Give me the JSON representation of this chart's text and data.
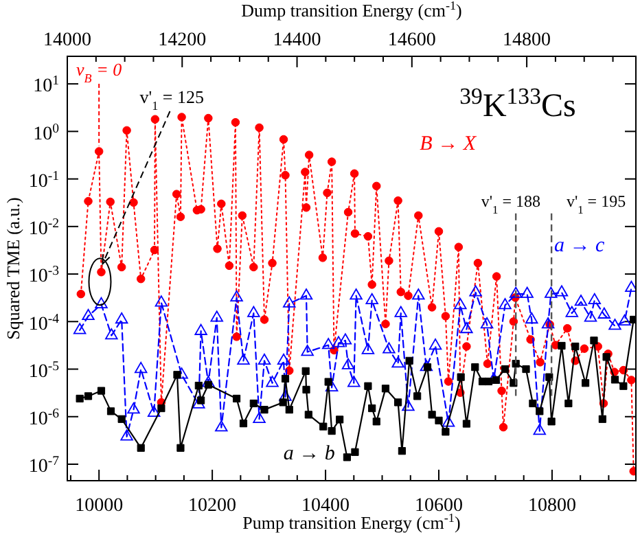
{
  "chart_data": {
    "type": "line",
    "xlabel": "Pump transition Energy (cm$^{-1}$)",
    "x2label": "Dump transition Energy (cm$^{-1}$)",
    "ylabel": "Squared TME (a.u.)",
    "log": "y",
    "xlim": [
      9944,
      10948
    ],
    "xticks": [
      {
        "value": 9950,
        "label": null
      },
      10000,
      {
        "value": 10050,
        "label": null
      },
      {
        "value": 10100,
        "label": null
      },
      {
        "value": 10150,
        "label": null
      },
      10200,
      {
        "value": 10250,
        "label": null
      },
      {
        "value": 10300,
        "label": null
      },
      {
        "value": 10350,
        "label": null
      },
      10400,
      {
        "value": 10450,
        "label": null
      },
      {
        "value": 10500,
        "label": null
      },
      {
        "value": 10550,
        "label": null
      },
      10600,
      {
        "value": 10650,
        "label": null
      },
      {
        "value": 10700,
        "label": null
      },
      {
        "value": 10750,
        "label": null
      },
      10800,
      {
        "value": 10850,
        "label": null
      },
      {
        "value": 10900,
        "label": null
      }
    ],
    "x2lim": [
      14000,
      14990
    ],
    "x2ticks": [
      14000,
      {
        "value": 14050,
        "label": null
      },
      {
        "value": 14100,
        "label": null
      },
      {
        "value": 14150,
        "label": null
      },
      14200,
      {
        "value": 14250,
        "label": null
      },
      {
        "value": 14300,
        "label": null
      },
      {
        "value": 14350,
        "label": null
      },
      14400,
      {
        "value": 14450,
        "label": null
      },
      {
        "value": 14500,
        "label": null
      },
      {
        "value": 14550,
        "label": null
      },
      14600,
      {
        "value": 14650,
        "label": null
      },
      {
        "value": 14700,
        "label": null
      },
      {
        "value": 14750,
        "label": null
      },
      14800,
      {
        "value": 14850,
        "label": null
      },
      {
        "value": 14900,
        "label": null
      },
      {
        "value": 14950,
        "label": null
      }
    ],
    "ylim": [
      4.5e-08,
      38
    ],
    "yticks": [
      {
        "value": 1e-07,
        "label": "10$^{-7}$"
      },
      {
        "value": 1e-06,
        "label": "10$^{-6}$"
      },
      {
        "value": 1e-05,
        "label": "10$^{-5}$"
      },
      {
        "value": 0.0001,
        "label": "10$^{-4}$"
      },
      {
        "value": 0.001,
        "label": "10$^{-3}$"
      },
      {
        "value": 0.01,
        "label": "10$^{-2}$"
      },
      {
        "value": 0.1,
        "label": "10$^{-1}$"
      },
      {
        "value": 1,
        "label": "10$^{0}$"
      },
      {
        "value": 10,
        "label": "10$^{1}$"
      }
    ],
    "grid": false,
    "series": [
      {
        "name": "B → X",
        "color": "#ff0000",
        "marker": "circle",
        "line_style": "dotted",
        "x": [
          9968,
          9981,
          10000,
          10004,
          10020,
          10040,
          10049,
          10061,
          10074,
          10098,
          10099,
          10110,
          10137,
          10144,
          10146,
          10173,
          10180,
          10193,
          10209,
          10216,
          10230,
          10241,
          10243,
          10253,
          10273,
          10283,
          10292,
          10306,
          10326,
          10329,
          10336,
          10364,
          10366,
          10371,
          10395,
          10403,
          10411,
          10415,
          10440,
          10451,
          10452,
          10475,
          10482,
          10490,
          10506,
          10512,
          10528,
          10533,
          10546,
          10564,
          10588,
          10600,
          10612,
          10617,
          10635,
          10638,
          10649,
          10669,
          10686,
          10702,
          10711,
          10714,
          10732,
          10735,
          10762,
          10779,
          10796,
          10806,
          10827,
          10841,
          10857,
          10881,
          10891,
          10899,
          10910,
          10926,
          10940,
          10944
        ],
        "values": [
          0.00038,
          0.034,
          0.38,
          0.0011,
          0.033,
          0.0014,
          1.05,
          0.032,
          0.00079,
          0.0032,
          1.8,
          2e-06,
          0.048,
          0.016,
          2.0,
          0.022,
          0.023,
          1.9,
          0.0034,
          0.03,
          0.0015,
          1.55,
          4.8e-05,
          0.017,
          0.0014,
          1.2,
          0.00011,
          0.0017,
          0.68,
          0.12,
          9.3e-06,
          0.14,
          0.025,
          0.32,
          0.0022,
          0.051,
          0.23,
          2.5e-05,
          0.02,
          0.13,
          0.0071,
          0.0062,
          0.0006,
          0.071,
          8.9e-05,
          0.0019,
          0.035,
          0.00042,
          0.00035,
          0.017,
          0.0002,
          0.0079,
          0.00013,
          5.5e-06,
          0.0037,
          3.2e-06,
          3e-05,
          0.0017,
          1.3e-05,
          0.00089,
          3.5e-06,
          6e-07,
          0.0001,
          0.00032,
          4.2e-05,
          1.4e-05,
          8.7e-05,
          3.2e-05,
          7.2e-05,
          1.5e-05,
          2.7e-05,
          3e-05,
          1.9e-06,
          2.1e-05,
          8.7e-06,
          9.5e-06,
          5.9e-06,
          7.1e-08
        ]
      },
      {
        "name": "a → c",
        "color": "#0000ff",
        "marker": "triangle",
        "line_style": "dashed",
        "x": [
          9966,
          9981,
          10004,
          10022,
          10040,
          10049,
          10061,
          10074,
          10097,
          10110,
          10146,
          10176,
          10180,
          10193,
          10208,
          10216,
          10243,
          10255,
          10273,
          10283,
          10292,
          10306,
          10326,
          10329,
          10336,
          10366,
          10368,
          10405,
          10411,
          10423,
          10435,
          10440,
          10450,
          10454,
          10475,
          10482,
          10512,
          10528,
          10533,
          10546,
          10564,
          10578,
          10594,
          10617,
          10638,
          10649,
          10665,
          10685,
          10697,
          10717,
          10736,
          10756,
          10764,
          10778,
          10793,
          10798,
          10817,
          10835,
          10851,
          10868,
          10875,
          10892,
          10911,
          10928,
          10940
        ],
        "values": [
          6.6e-05,
          0.00013,
          0.00023,
          5.1e-05,
          0.00011,
          3.8e-07,
          1.4e-06,
          1e-05,
          1.2e-06,
          0.00025,
          7.6e-06,
          1.8e-06,
          6.3e-05,
          5.1e-06,
          0.00012,
          5.9e-07,
          0.00032,
          1.5e-05,
          0.00015,
          8.9e-07,
          1.5e-05,
          5.1e-06,
          1.5e-05,
          2.6e-06,
          0.00024,
          0.00035,
          2.3e-05,
          3.2e-05,
          4.1e-06,
          3.5e-05,
          4e-05,
          1.2e-05,
          5.1e-06,
          0.00035,
          2.5e-05,
          0.00028,
          2.6e-05,
          1.3e-05,
          0.00015,
          1.6e-06,
          0.00035,
          1.1e-05,
          3.1e-05,
          7.4e-07,
          0.00022,
          6.9e-05,
          0.00041,
          8.7e-05,
          6e-06,
          0.00022,
          0.00038,
          0.00038,
          0.00011,
          5e-07,
          8.7e-05,
          0.00038,
          0.00041,
          0.00015,
          0.00026,
          0.00012,
          0.00028,
          0.00014,
          8.1e-05,
          0.0001,
          0.00051
        ]
      },
      {
        "name": "a → b",
        "color": "#000000",
        "marker": "square",
        "line_style": "solid",
        "x": [
          9966,
          9981,
          10004,
          10021,
          10040,
          10074,
          10110,
          10138,
          10144,
          10176,
          10180,
          10193,
          10243,
          10255,
          10273,
          10292,
          10325,
          10329,
          10336,
          10365,
          10366,
          10370,
          10396,
          10405,
          10411,
          10425,
          10438,
          10452,
          10475,
          10482,
          10490,
          10506,
          10528,
          10535,
          10548,
          10562,
          10580,
          10588,
          10600,
          10612,
          10639,
          10649,
          10664,
          10677,
          10688,
          10701,
          10717,
          10732,
          10736,
          10754,
          10766,
          10778,
          10795,
          10799,
          10817,
          10829,
          10841,
          10859,
          10874,
          10889,
          10896,
          10911,
          10926,
          10944
        ],
        "values": [
          2.4e-06,
          2.7e-06,
          3.5e-06,
          1.3e-06,
          8.9e-07,
          2.2e-07,
          1.5e-06,
          7.6e-06,
          2.2e-07,
          4.5e-06,
          2.2e-06,
          4.7e-06,
          2.4e-06,
          7.2e-07,
          1.9e-06,
          1.4e-06,
          2e-06,
          6.3e-06,
          1.4e-06,
          9.1e-06,
          3.7e-06,
          1.1e-06,
          6.2e-07,
          5.4e-06,
          5e-07,
          8.7e-07,
          1.4e-07,
          1.8e-07,
          4.4e-06,
          1.5e-06,
          7.9e-07,
          3.9e-06,
          2e-06,
          1.9e-07,
          1.5e-05,
          2.7e-06,
          1.1e-05,
          1.1e-06,
          8.3e-07,
          4.8e-07,
          6.8e-06,
          7.1e-07,
          1.1e-05,
          5.5e-06,
          5.5e-06,
          5.9e-06,
          1e-05,
          5.1e-06,
          1.3e-05,
          1e-05,
          1.9e-06,
          1.3e-06,
          6.8e-06,
          7.9e-07,
          3.1e-05,
          1.9e-06,
          3e-05,
          5.1e-06,
          4e-05,
          8.9e-07,
          1.8e-05,
          6e-06,
          4.4e-06,
          0.00011
        ]
      }
    ],
    "ref_lines": [
      {
        "axis": "x",
        "value": 10736,
        "color": "#555555",
        "line_style": "dashed"
      },
      {
        "axis": "x",
        "value": 10799,
        "color": "#555555",
        "line_style": "dashed"
      }
    ],
    "annotations": [
      {
        "text": "v$_{B}$ = 0",
        "x": 10000,
        "y": 0.38
      },
      {
        "text": "v'$_{1}$ = 125",
        "x": 10004,
        "y": 0.0011
      },
      "$^{39}$K$^{133}$Cs",
      "v'$_{1}$ = 188",
      "v'$_{1}$ = 195"
    ]
  }
}
